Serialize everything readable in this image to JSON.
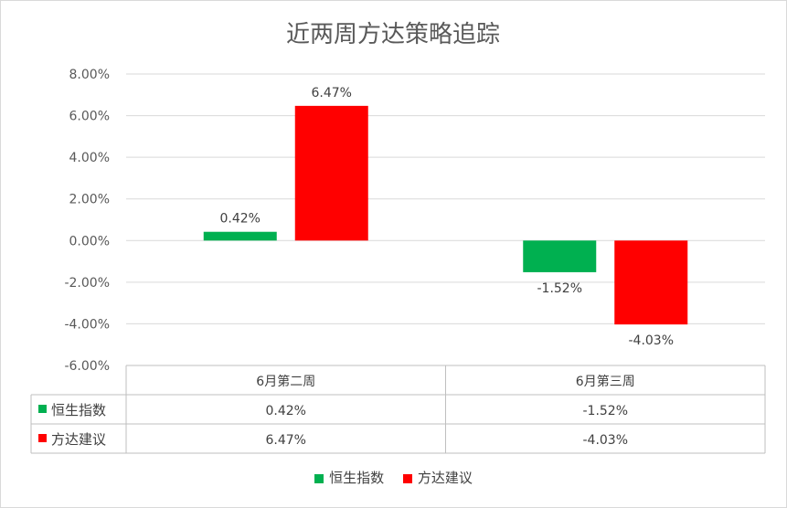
{
  "chart_data": {
    "type": "bar",
    "title": "近两周方达策略追踪",
    "categories": [
      "6月第二周",
      "6月第三周"
    ],
    "series": [
      {
        "name": "恒生指数",
        "values": [
          0.42,
          -1.52
        ],
        "labels": [
          "0.42%",
          "-1.52%"
        ],
        "color": "#00b050"
      },
      {
        "name": "方达建议",
        "values": [
          6.47,
          -4.03
        ],
        "labels": [
          "6.47%",
          "-4.03%"
        ],
        "color": "#ff0000"
      }
    ],
    "ylim": [
      -6,
      8
    ],
    "yticks": [
      "8.00%",
      "6.00%",
      "4.00%",
      "2.00%",
      "0.00%",
      "-2.00%",
      "-4.00%",
      "-6.00%"
    ],
    "grid": true,
    "data_table": true,
    "legend": "bottom"
  }
}
